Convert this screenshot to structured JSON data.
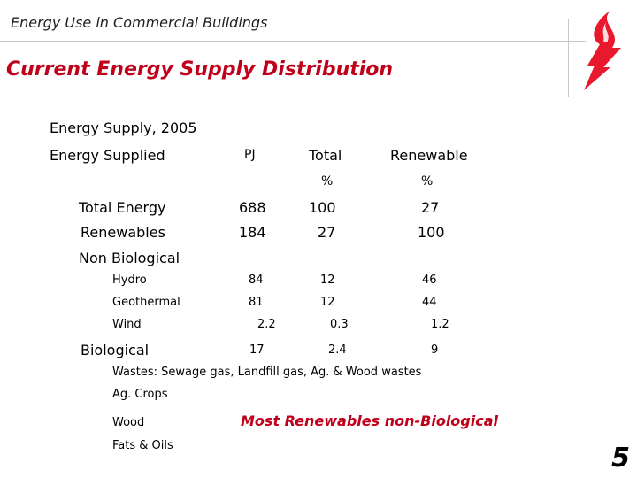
{
  "header": {
    "title": "Energy Use in Commercial Buildings"
  },
  "slide": {
    "title": "Current Energy Supply Distribution",
    "subtitle": "Energy Supply, 2005",
    "note": "Most Renewables non-Biological",
    "page_number": "5"
  },
  "table": {
    "headers": {
      "label": "Energy Supplied",
      "pj": "PJ",
      "total": "Total",
      "renewable": "Renewable",
      "total_unit": "%",
      "renewable_unit": "%"
    },
    "rows": {
      "total_energy": {
        "label": "Total Energy",
        "pj": "688",
        "total": "100",
        "renewable": "27"
      },
      "renewables": {
        "label": "Renewables",
        "pj": "184",
        "total": "27",
        "renewable": "100"
      },
      "non_biological": {
        "label": "Non Biological"
      },
      "hydro": {
        "label": "Hydro",
        "pj": "84",
        "total": "12",
        "renewable": "46"
      },
      "geothermal": {
        "label": "Geothermal",
        "pj": "81",
        "total": "12",
        "renewable": "44"
      },
      "wind": {
        "label": "Wind",
        "pj": "2.2",
        "total": "0.3",
        "renewable": "1.2"
      },
      "biological": {
        "label": "Biological",
        "pj": "17",
        "total": "2.4",
        "renewable": "9"
      },
      "wastes": {
        "label": "Wastes: Sewage gas, Landfill gas, Ag. & Wood wastes"
      },
      "ag_crops": {
        "label": "Ag. Crops"
      },
      "wood": {
        "label": "Wood"
      },
      "fats_oils": {
        "label": "Fats & Oils"
      }
    }
  },
  "colors": {
    "accent": "#c0001a",
    "logo_red": "#e8192c"
  },
  "logo": {
    "icon": "flame-lightning-icon"
  }
}
